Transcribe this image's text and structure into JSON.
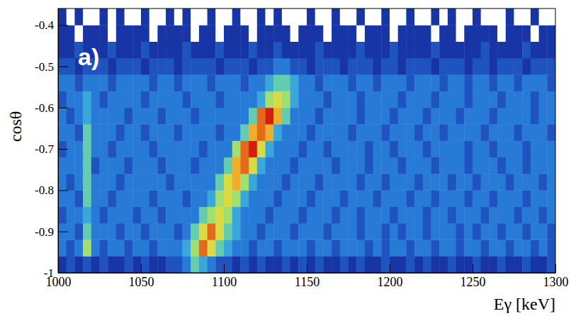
{
  "chart_data": {
    "type": "heatmap",
    "panel_label": "a)",
    "xlabel": "Eγ [keV]",
    "ylabel": "cosθ",
    "xlim": [
      1000,
      1300
    ],
    "ylim": [
      -1,
      -0.36
    ],
    "xticks": [
      1000,
      1050,
      1100,
      1150,
      1200,
      1250,
      1300
    ],
    "yticks": [
      -1,
      -0.9,
      -0.8,
      -0.7,
      -0.6,
      -0.5,
      -0.4
    ],
    "grid": false,
    "x_bins": [
      1000,
      1005,
      1010,
      1015,
      1020,
      1025,
      1030,
      1035,
      1040,
      1045,
      1050,
      1055,
      1060,
      1065,
      1070,
      1075,
      1080,
      1085,
      1090,
      1095,
      1100,
      1105,
      1110,
      1115,
      1120,
      1125,
      1130,
      1135,
      1140,
      1145,
      1150,
      1155,
      1160,
      1165,
      1170,
      1175,
      1180,
      1185,
      1190,
      1195,
      1200,
      1205,
      1210,
      1215,
      1220,
      1225,
      1230,
      1235,
      1240,
      1245,
      1250,
      1255,
      1260,
      1265,
      1270,
      1275,
      1280,
      1285,
      1290,
      1295,
      1300
    ],
    "y_bins": [
      -1,
      -0.96,
      -0.92,
      -0.88,
      -0.84,
      -0.8,
      -0.76,
      -0.72,
      -0.68,
      -0.64,
      -0.6,
      -0.56,
      -0.52,
      -0.48,
      -0.44,
      -0.4,
      -0.36
    ],
    "cells": [
      [
        1,
        2,
        1,
        2,
        1,
        2,
        1,
        1,
        2,
        1,
        2,
        1,
        1,
        2,
        2,
        3,
        5,
        4,
        3,
        2,
        2,
        1,
        2,
        1,
        2,
        1,
        1,
        2,
        1,
        2,
        1,
        2,
        1,
        1,
        2,
        1,
        2,
        1,
        1,
        2,
        1,
        1,
        2,
        1,
        2,
        1,
        1,
        2,
        1,
        1,
        2,
        1,
        1,
        2,
        1,
        1,
        2,
        1,
        1,
        2
      ],
      [
        3,
        2,
        3,
        6,
        3,
        2,
        3,
        3,
        2,
        3,
        3,
        2,
        3,
        3,
        3,
        4,
        6,
        9,
        7,
        5,
        4,
        3,
        3,
        2,
        3,
        3,
        2,
        3,
        3,
        3,
        2,
        3,
        3,
        2,
        3,
        3,
        3,
        2,
        3,
        2,
        3,
        3,
        2,
        3,
        3,
        2,
        3,
        3,
        2,
        3,
        3,
        2,
        3,
        3,
        2,
        3,
        3,
        2,
        3,
        2
      ],
      [
        3,
        3,
        2,
        5,
        3,
        3,
        3,
        2,
        3,
        3,
        2,
        3,
        3,
        3,
        2,
        3,
        5,
        7,
        9,
        7,
        5,
        4,
        3,
        3,
        2,
        3,
        3,
        3,
        2,
        3,
        3,
        3,
        2,
        3,
        3,
        3,
        2,
        3,
        3,
        2,
        3,
        2,
        3,
        3,
        2,
        3,
        3,
        3,
        2,
        3,
        2,
        3,
        3,
        2,
        3,
        3,
        2,
        3,
        3,
        2
      ],
      [
        2,
        3,
        3,
        4,
        3,
        2,
        3,
        3,
        3,
        2,
        3,
        3,
        2,
        3,
        3,
        3,
        3,
        5,
        6,
        7,
        6,
        4,
        3,
        3,
        3,
        2,
        3,
        3,
        3,
        2,
        3,
        3,
        3,
        2,
        3,
        3,
        2,
        3,
        3,
        3,
        2,
        3,
        3,
        3,
        2,
        3,
        3,
        2,
        3,
        3,
        3,
        2,
        3,
        3,
        3,
        2,
        3,
        3,
        2,
        3
      ],
      [
        3,
        3,
        2,
        5,
        3,
        3,
        2,
        3,
        3,
        3,
        3,
        2,
        3,
        3,
        3,
        2,
        3,
        3,
        4,
        6,
        7,
        6,
        4,
        3,
        3,
        3,
        2,
        3,
        3,
        3,
        2,
        3,
        3,
        3,
        2,
        3,
        3,
        3,
        2,
        3,
        3,
        3,
        2,
        3,
        3,
        2,
        3,
        3,
        3,
        2,
        3,
        3,
        2,
        3,
        3,
        3,
        2,
        3,
        3,
        3
      ],
      [
        3,
        2,
        3,
        5,
        3,
        3,
        3,
        2,
        3,
        3,
        3,
        3,
        3,
        2,
        3,
        3,
        3,
        3,
        3,
        5,
        7,
        8,
        6,
        4,
        3,
        3,
        3,
        2,
        3,
        3,
        3,
        2,
        3,
        3,
        3,
        3,
        2,
        3,
        3,
        2,
        3,
        3,
        3,
        2,
        3,
        3,
        3,
        2,
        3,
        3,
        2,
        3,
        3,
        3,
        2,
        3,
        3,
        3,
        2,
        3
      ],
      [
        3,
        3,
        3,
        5,
        2,
        3,
        3,
        3,
        2,
        3,
        3,
        3,
        2,
        3,
        3,
        3,
        2,
        3,
        3,
        3,
        5,
        8,
        9,
        7,
        4,
        3,
        3,
        3,
        2,
        3,
        3,
        3,
        3,
        2,
        3,
        3,
        3,
        2,
        3,
        3,
        3,
        2,
        3,
        3,
        3,
        2,
        3,
        3,
        3,
        2,
        3,
        3,
        3,
        2,
        3,
        3,
        2,
        3,
        3,
        3
      ],
      [
        2,
        3,
        3,
        5,
        3,
        3,
        2,
        3,
        3,
        3,
        3,
        2,
        3,
        3,
        3,
        3,
        3,
        2,
        3,
        3,
        3,
        6,
        9,
        10,
        7,
        4,
        3,
        3,
        3,
        2,
        3,
        3,
        2,
        3,
        3,
        3,
        3,
        2,
        3,
        3,
        2,
        3,
        3,
        3,
        2,
        3,
        3,
        3,
        3,
        2,
        3,
        3,
        2,
        3,
        3,
        3,
        2,
        3,
        3,
        3
      ],
      [
        3,
        3,
        2,
        5,
        3,
        3,
        3,
        2,
        3,
        3,
        2,
        3,
        3,
        3,
        2,
        3,
        3,
        3,
        3,
        2,
        3,
        3,
        5,
        8,
        9,
        8,
        4,
        3,
        3,
        3,
        2,
        3,
        3,
        3,
        3,
        2,
        3,
        3,
        3,
        2,
        3,
        3,
        3,
        2,
        3,
        3,
        2,
        3,
        3,
        3,
        3,
        2,
        3,
        3,
        3,
        2,
        3,
        3,
        3,
        2
      ],
      [
        3,
        2,
        3,
        4,
        3,
        3,
        3,
        3,
        2,
        3,
        3,
        3,
        2,
        3,
        3,
        3,
        2,
        3,
        3,
        3,
        3,
        3,
        3,
        5,
        9,
        10,
        8,
        5,
        3,
        3,
        3,
        2,
        3,
        3,
        3,
        3,
        2,
        3,
        3,
        3,
        2,
        3,
        3,
        3,
        2,
        3,
        3,
        3,
        2,
        3,
        3,
        3,
        2,
        3,
        3,
        3,
        3,
        2,
        3,
        3
      ],
      [
        2,
        3,
        3,
        4,
        3,
        2,
        3,
        3,
        3,
        3,
        2,
        3,
        3,
        3,
        3,
        2,
        3,
        3,
        3,
        2,
        3,
        3,
        3,
        3,
        4,
        6,
        7,
        6,
        4,
        3,
        3,
        3,
        2,
        3,
        3,
        3,
        2,
        3,
        3,
        3,
        3,
        2,
        3,
        3,
        3,
        2,
        3,
        3,
        3,
        2,
        3,
        3,
        3,
        2,
        3,
        3,
        3,
        2,
        3,
        3
      ],
      [
        3,
        3,
        2,
        3,
        3,
        3,
        2,
        3,
        3,
        3,
        3,
        2,
        3,
        3,
        2,
        3,
        3,
        3,
        2,
        3,
        3,
        3,
        2,
        3,
        3,
        4,
        5,
        5,
        4,
        3,
        3,
        2,
        3,
        3,
        3,
        2,
        3,
        3,
        2,
        3,
        3,
        3,
        2,
        3,
        3,
        3,
        2,
        3,
        3,
        2,
        3,
        3,
        2,
        3,
        3,
        2,
        3,
        3,
        3,
        2
      ],
      [
        2,
        2,
        1,
        2,
        2,
        2,
        1,
        2,
        2,
        2,
        1,
        2,
        2,
        2,
        1,
        2,
        2,
        2,
        2,
        1,
        2,
        2,
        2,
        1,
        2,
        2,
        3,
        3,
        2,
        2,
        1,
        2,
        2,
        2,
        1,
        2,
        2,
        2,
        1,
        2,
        2,
        1,
        2,
        2,
        2,
        1,
        2,
        2,
        2,
        1,
        2,
        2,
        1,
        2,
        2,
        2,
        1,
        2,
        2,
        2
      ],
      [
        1,
        1,
        2,
        1,
        1,
        1,
        2,
        1,
        1,
        1,
        2,
        1,
        1,
        1,
        1,
        2,
        1,
        1,
        1,
        2,
        1,
        1,
        1,
        2,
        1,
        1,
        2,
        1,
        1,
        1,
        1,
        2,
        1,
        1,
        1,
        1,
        2,
        1,
        1,
        1,
        2,
        1,
        1,
        1,
        1,
        2,
        1,
        1,
        1,
        1,
        1,
        2,
        1,
        1,
        1,
        1,
        2,
        1,
        1,
        1
      ],
      [
        1,
        1,
        0,
        1,
        1,
        1,
        0,
        1,
        1,
        1,
        1,
        0,
        1,
        1,
        1,
        1,
        0,
        1,
        1,
        0,
        1,
        1,
        1,
        0,
        1,
        1,
        1,
        1,
        0,
        1,
        1,
        1,
        0,
        1,
        1,
        1,
        0,
        1,
        1,
        1,
        0,
        1,
        1,
        1,
        1,
        0,
        1,
        1,
        0,
        1,
        1,
        1,
        1,
        0,
        1,
        1,
        1,
        0,
        1,
        1
      ],
      [
        1,
        0,
        1,
        0,
        0,
        1,
        0,
        1,
        0,
        0,
        1,
        0,
        0,
        1,
        0,
        1,
        0,
        0,
        1,
        0,
        0,
        1,
        0,
        0,
        1,
        0,
        1,
        0,
        0,
        0,
        1,
        0,
        0,
        1,
        0,
        0,
        1,
        0,
        0,
        1,
        0,
        0,
        1,
        0,
        0,
        1,
        0,
        1,
        0,
        0,
        1,
        0,
        0,
        0,
        1,
        0,
        0,
        1,
        0,
        0
      ]
    ]
  }
}
